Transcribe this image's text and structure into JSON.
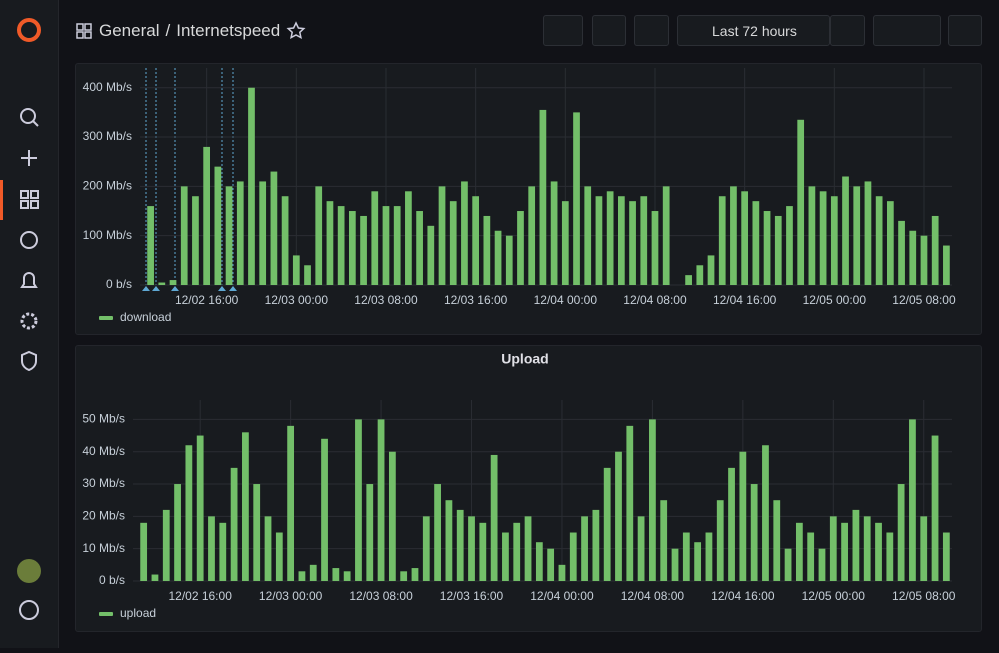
{
  "header": {
    "folder": "General",
    "separator": "/",
    "dashboard": "Internetspeed",
    "time_range": "Last 72 hours"
  },
  "chart_data": [
    {
      "type": "bar",
      "categories": [
        null,
        null,
        null,
        null,
        null,
        "12/02 16:00",
        null,
        null,
        null,
        null,
        null,
        null,
        null,
        "12/03 00:00",
        null,
        null,
        null,
        null,
        null,
        null,
        null,
        "12/03 08:00",
        null,
        null,
        null,
        null,
        null,
        null,
        null,
        "12/03 16:00",
        null,
        null,
        null,
        null,
        null,
        null,
        null,
        "12/04 00:00",
        null,
        null,
        null,
        null,
        null,
        null,
        null,
        "12/04 08:00",
        null,
        null,
        null,
        null,
        null,
        null,
        null,
        "12/04 16:00",
        null,
        null,
        null,
        null,
        null,
        null,
        null,
        "12/05 00:00",
        null,
        null,
        null,
        null,
        null,
        null,
        null,
        "12/05 08:00",
        null,
        null
      ],
      "series": [
        {
          "name": "download",
          "color": "#73bf69",
          "values": [
            160,
            5,
            10,
            200,
            180,
            280,
            240,
            200,
            210,
            400,
            210,
            230,
            180,
            60,
            40,
            200,
            170,
            160,
            150,
            140,
            190,
            160,
            160,
            190,
            150,
            120,
            200,
            170,
            210,
            180,
            140,
            110,
            100,
            150,
            200,
            355,
            210,
            170,
            350,
            200,
            180,
            190,
            180,
            170,
            180,
            150,
            200,
            null,
            20,
            40,
            60,
            180,
            200,
            190,
            170,
            150,
            140,
            160,
            335,
            200,
            190,
            180,
            220,
            200,
            210,
            180,
            170,
            130,
            110,
            100,
            140,
            80
          ]
        }
      ],
      "ylim": [
        0,
        440
      ],
      "yticks": [
        {
          "value": 0,
          "label": "0 b/s"
        },
        {
          "value": 100,
          "label": "100 Mb/s"
        },
        {
          "value": 200,
          "label": "200 Mb/s"
        },
        {
          "value": 300,
          "label": "300 Mb/s"
        },
        {
          "value": 400,
          "label": "400 Mb/s"
        }
      ],
      "grid": true
    },
    {
      "type": "bar",
      "title": "Upload",
      "categories": [
        null,
        null,
        null,
        null,
        null,
        "12/02 16:00",
        null,
        null,
        null,
        null,
        null,
        null,
        null,
        "12/03 00:00",
        null,
        null,
        null,
        null,
        null,
        null,
        null,
        "12/03 08:00",
        null,
        null,
        null,
        null,
        null,
        null,
        null,
        "12/03 16:00",
        null,
        null,
        null,
        null,
        null,
        null,
        null,
        "12/04 00:00",
        null,
        null,
        null,
        null,
        null,
        null,
        null,
        "12/04 08:00",
        null,
        null,
        null,
        null,
        null,
        null,
        null,
        "12/04 16:00",
        null,
        null,
        null,
        null,
        null,
        null,
        null,
        "12/05 00:00",
        null,
        null,
        null,
        null,
        null,
        null,
        null,
        "12/05 08:00",
        null,
        null
      ],
      "series": [
        {
          "name": "upload",
          "color": "#73bf69",
          "values": [
            18,
            2,
            22,
            30,
            42,
            45,
            20,
            18,
            35,
            46,
            30,
            20,
            15,
            48,
            3,
            5,
            44,
            4,
            3,
            50,
            30,
            50,
            40,
            3,
            4,
            20,
            30,
            25,
            22,
            20,
            18,
            39,
            15,
            18,
            20,
            12,
            10,
            5,
            15,
            20,
            22,
            35,
            40,
            48,
            20,
            50,
            25,
            10,
            15,
            12,
            15,
            25,
            35,
            40,
            30,
            42,
            25,
            10,
            18,
            15,
            10,
            20,
            18,
            22,
            20,
            18,
            15,
            30,
            50,
            20,
            45,
            15
          ]
        }
      ],
      "ylim": [
        0,
        56
      ],
      "yticks": [
        {
          "value": 0,
          "label": "0 b/s"
        },
        {
          "value": 10,
          "label": "10 Mb/s"
        },
        {
          "value": 20,
          "label": "20 Mb/s"
        },
        {
          "value": 30,
          "label": "30 Mb/s"
        },
        {
          "value": 40,
          "label": "40 Mb/s"
        },
        {
          "value": 50,
          "label": "50 Mb/s"
        }
      ],
      "grid": true
    }
  ]
}
